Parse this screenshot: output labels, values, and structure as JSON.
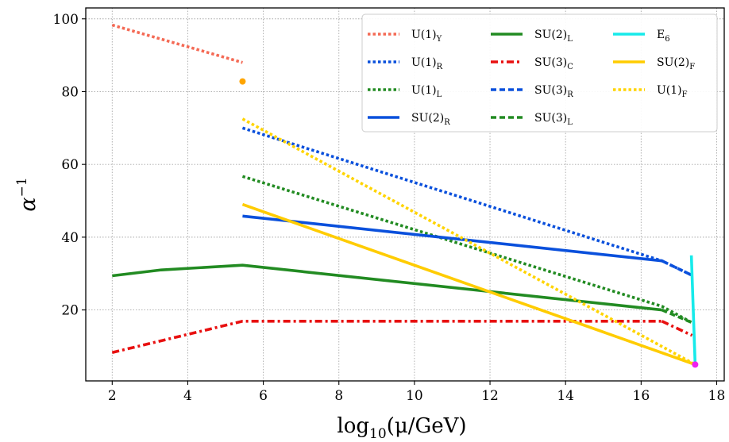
{
  "chart_data": {
    "type": "line",
    "xlabel": {
      "base": "log",
      "sub": "10",
      "rest": "(μ/GeV)"
    },
    "ylabel": {
      "base": "α",
      "sup": "−1"
    },
    "xlim": [
      1.3,
      18.2
    ],
    "ylim": [
      0.5,
      103
    ],
    "xticks": [
      2,
      4,
      6,
      8,
      10,
      12,
      14,
      16,
      18
    ],
    "yticks": [
      20,
      40,
      60,
      80,
      100
    ],
    "grid": true,
    "legend_position": "top-right",
    "series": [
      {
        "name": "U(1)",
        "sub": "Y",
        "color": "#f46a55",
        "style": "dotted",
        "x": [
          2,
          5.45
        ],
        "y": [
          98.3,
          88
        ]
      },
      {
        "name": "U(1)",
        "sub": "R",
        "color": "#0a50dc",
        "style": "dotted",
        "x": [
          5.45,
          16.55,
          17.35
        ],
        "y": [
          70,
          33.5,
          29.5
        ]
      },
      {
        "name": "U(1)",
        "sub": "L",
        "color": "#228b22",
        "style": "dotted",
        "x": [
          5.45,
          16.55,
          17.35
        ],
        "y": [
          56.7,
          21,
          16.5
        ]
      },
      {
        "name": "SU(2)",
        "sub": "R",
        "color": "#0a50dc",
        "style": "solid",
        "x": [
          5.45,
          16.55
        ],
        "y": [
          45.8,
          33.5
        ]
      },
      {
        "name": "SU(2)",
        "sub": "L",
        "color": "#228b22",
        "style": "solid",
        "x": [
          2,
          3.3,
          5.45,
          16.55
        ],
        "y": [
          29.4,
          31,
          32.3,
          20
        ]
      },
      {
        "name": "SU(3)",
        "sub": "C",
        "color": "#e81010",
        "style": "dashdot",
        "x": [
          2,
          5.45,
          16.55
        ],
        "y": [
          8.3,
          16.9,
          16.9
        ]
      },
      {
        "name": "SU(3)",
        "sub": "R",
        "color": "#0a50dc",
        "style": "dashed",
        "x": [
          16.55,
          17.35
        ],
        "y": [
          33.5,
          29.5
        ]
      },
      {
        "name": "SU(3)",
        "sub": "L",
        "color": "#228b22",
        "style": "dashed",
        "x": [
          16.55,
          17.35
        ],
        "y": [
          20,
          16.5
        ]
      },
      {
        "name": "E",
        "sub": "6",
        "color": "#17eaea",
        "style": "solid",
        "x": [
          17.33,
          17.43
        ],
        "y": [
          35,
          5
        ]
      },
      {
        "name": "SU(2)",
        "sub": "F",
        "color": "#ffcc00",
        "style": "solid",
        "x": [
          5.45,
          17.43
        ],
        "y": [
          49,
          5
        ]
      },
      {
        "name": "U(1)",
        "sub": "F",
        "color": "#ffd400",
        "style": "dotted",
        "x": [
          5.45,
          17.43
        ],
        "y": [
          72.5,
          5
        ]
      }
    ],
    "extra_lines": [
      {
        "color": "#e81010",
        "style": "dashdot",
        "x": [
          16.55,
          17.35
        ],
        "y": [
          16.9,
          13
        ]
      }
    ],
    "markers": [
      {
        "x": 5.45,
        "y": 82.8,
        "color": "#ffa500"
      },
      {
        "x": 17.43,
        "y": 5,
        "color": "#ee22ee"
      }
    ]
  }
}
